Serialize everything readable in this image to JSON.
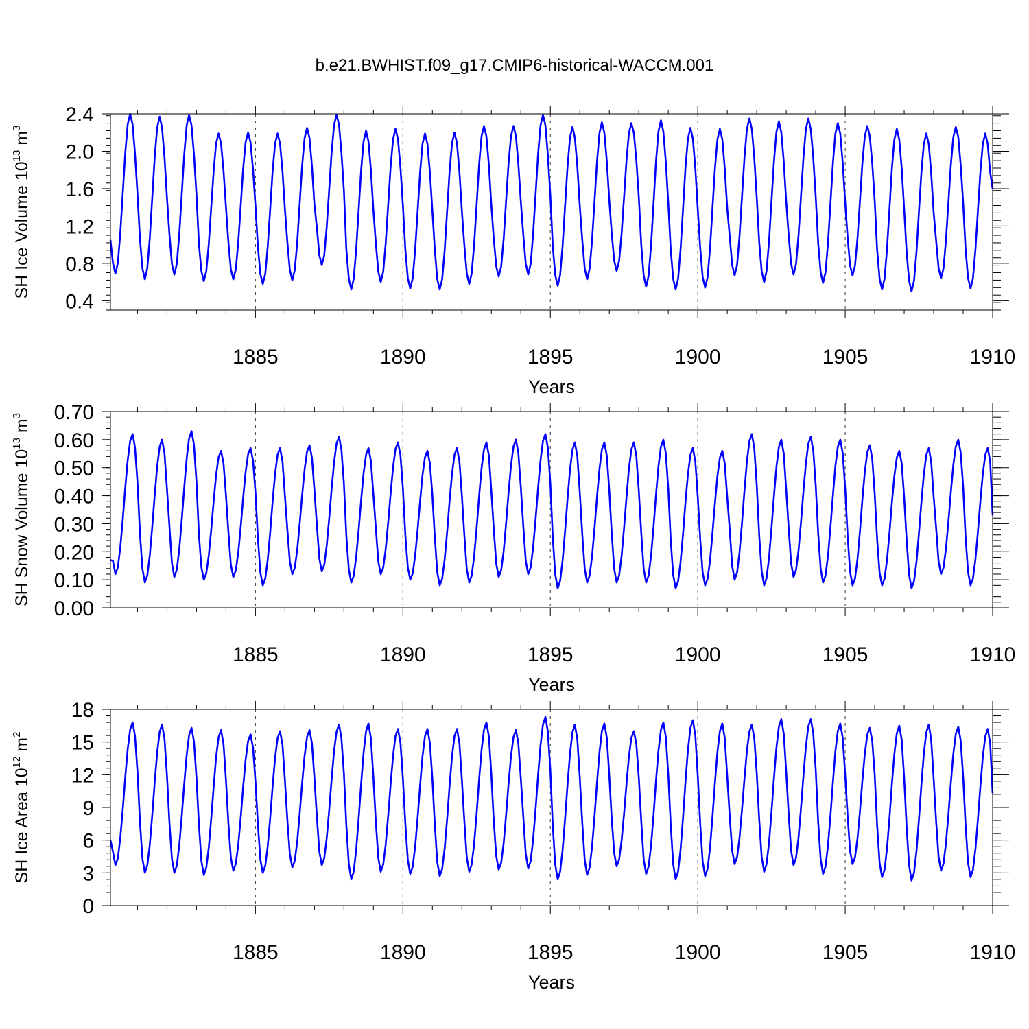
{
  "title": "b.e21.BWHIST.f09_g17.CMIP6-historical-WACCM.001",
  "line_color": "#0000ff",
  "chart_data": [
    {
      "type": "line",
      "id": "ice-volume",
      "ylabel_main": "SH Ice Volume 10",
      "ylabel_exp": "13",
      "ylabel_tail": " m",
      "ylabel_unit_exp": "3",
      "xlabel": "Years",
      "xlim": [
        1880.083,
        1910.0
      ],
      "ylim": [
        0.3,
        2.4
      ],
      "yticks": [
        0.4,
        0.8,
        1.2,
        1.6,
        2.0,
        2.4
      ],
      "ytick_labels": [
        "0.4",
        "0.8",
        "1.2",
        "1.6",
        "2.0",
        "2.4"
      ],
      "xticks": [
        1885,
        1890,
        1895,
        1900,
        1905,
        1910
      ],
      "xtick_labels": [
        "1885",
        "1890",
        "1895",
        "1900",
        "1905",
        "1910"
      ],
      "gridlines_x": [
        1885,
        1890,
        1895,
        1900,
        1905
      ],
      "min_month": 2,
      "max_month": 8,
      "first_value": 1.05,
      "last_value": 1.6,
      "yearly_min": [
        0.69,
        0.63,
        0.68,
        0.61,
        0.63,
        0.58,
        0.62,
        0.78,
        0.52,
        0.6,
        0.53,
        0.52,
        0.58,
        0.66,
        0.68,
        0.56,
        0.63,
        0.72,
        0.55,
        0.52,
        0.54,
        0.67,
        0.6,
        0.68,
        0.59,
        0.67,
        0.52,
        0.5,
        0.64,
        0.53
      ],
      "yearly_max": [
        2.4,
        2.37,
        2.39,
        2.19,
        2.2,
        2.19,
        2.25,
        2.39,
        2.22,
        2.24,
        2.19,
        2.2,
        2.27,
        2.27,
        2.39,
        2.26,
        2.31,
        2.3,
        2.33,
        2.25,
        2.24,
        2.35,
        2.32,
        2.35,
        2.3,
        2.27,
        2.24,
        2.19,
        2.26,
        2.19
      ]
    },
    {
      "type": "line",
      "id": "snow-volume",
      "ylabel_main": "SH Snow Volume 10",
      "ylabel_exp": "13",
      "ylabel_tail": " m",
      "ylabel_unit_exp": "3",
      "xlabel": "Years",
      "xlim": [
        1880.083,
        1910.0
      ],
      "ylim": [
        0.0,
        0.7
      ],
      "yticks": [
        0.0,
        0.1,
        0.2,
        0.3,
        0.4,
        0.5,
        0.6,
        0.7
      ],
      "ytick_labels": [
        "0.00",
        "0.10",
        "0.20",
        "0.30",
        "0.40",
        "0.50",
        "0.60",
        "0.70"
      ],
      "xticks": [
        1885,
        1890,
        1895,
        1900,
        1905,
        1910
      ],
      "xtick_labels": [
        "1885",
        "1890",
        "1895",
        "1900",
        "1905",
        "1910"
      ],
      "gridlines_x": [
        1885,
        1890,
        1895,
        1900,
        1905
      ],
      "min_month": 2,
      "max_month": 9,
      "first_value": 0.17,
      "last_value": 0.33,
      "yearly_min": [
        0.12,
        0.09,
        0.11,
        0.1,
        0.11,
        0.08,
        0.12,
        0.13,
        0.09,
        0.12,
        0.1,
        0.08,
        0.09,
        0.11,
        0.12,
        0.07,
        0.09,
        0.09,
        0.09,
        0.07,
        0.08,
        0.1,
        0.08,
        0.11,
        0.09,
        0.08,
        0.08,
        0.07,
        0.12,
        0.08
      ],
      "yearly_max": [
        0.62,
        0.6,
        0.63,
        0.56,
        0.57,
        0.57,
        0.58,
        0.61,
        0.57,
        0.59,
        0.56,
        0.57,
        0.59,
        0.6,
        0.62,
        0.59,
        0.59,
        0.59,
        0.6,
        0.57,
        0.56,
        0.62,
        0.6,
        0.61,
        0.6,
        0.58,
        0.56,
        0.57,
        0.6,
        0.57
      ]
    },
    {
      "type": "line",
      "id": "ice-area",
      "ylabel_main": "SH Ice Area 10",
      "ylabel_exp": "12",
      "ylabel_tail": " m",
      "ylabel_unit_exp": "2",
      "xlabel": "Years",
      "xlim": [
        1880.083,
        1910.0
      ],
      "ylim": [
        0,
        18
      ],
      "yticks": [
        0,
        3,
        6,
        9,
        12,
        15,
        18
      ],
      "ytick_labels": [
        "0",
        "3",
        "6",
        "9",
        "12",
        "15",
        "18"
      ],
      "xticks": [
        1885,
        1890,
        1895,
        1900,
        1905,
        1910
      ],
      "xtick_labels": [
        "1885",
        "1890",
        "1895",
        "1900",
        "1905",
        "1910"
      ],
      "gridlines_x": [
        1885,
        1890,
        1895,
        1900,
        1905
      ],
      "min_month": 2,
      "max_month": 9,
      "first_value": 6.0,
      "last_value": 10.3,
      "yearly_min": [
        3.7,
        3.0,
        3.0,
        2.8,
        3.2,
        3.0,
        3.5,
        3.7,
        2.4,
        3.1,
        2.9,
        2.7,
        3.1,
        3.3,
        3.4,
        2.4,
        2.8,
        3.6,
        2.9,
        2.4,
        2.7,
        3.8,
        3.1,
        3.7,
        2.9,
        3.8,
        2.6,
        2.3,
        3.2,
        2.6
      ],
      "yearly_max": [
        16.8,
        16.6,
        16.3,
        16.1,
        15.7,
        16.0,
        16.1,
        16.6,
        16.7,
        16.2,
        16.2,
        16.2,
        16.8,
        16.1,
        17.3,
        16.6,
        16.7,
        16.0,
        16.8,
        17.0,
        16.7,
        16.6,
        17.1,
        17.1,
        16.7,
        16.3,
        16.5,
        16.6,
        16.4,
        16.2
      ]
    }
  ]
}
